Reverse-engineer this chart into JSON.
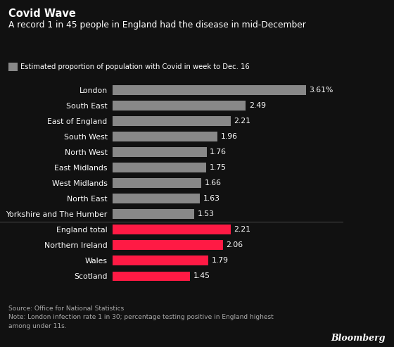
{
  "title_bold": "Covid Wave",
  "title_sub": "A record 1 in 45 people in England had the disease in mid-December",
  "legend_label": "Estimated proportion of population with Covid in week to Dec. 16",
  "categories": [
    "London",
    "South East",
    "East of England",
    "South West",
    "North West",
    "East Midlands",
    "West Midlands",
    "North East",
    "Yorkshire and The Humber",
    "England total",
    "Northern Ireland",
    "Wales",
    "Scotland"
  ],
  "values": [
    3.61,
    2.49,
    2.21,
    1.96,
    1.76,
    1.75,
    1.66,
    1.63,
    1.53,
    2.21,
    2.06,
    1.79,
    1.45
  ],
  "labels": [
    "3.61%",
    "2.49",
    "2.21",
    "1.96",
    "1.76",
    "1.75",
    "1.66",
    "1.63",
    "1.53",
    "2.21",
    "2.06",
    "1.79",
    "1.45"
  ],
  "colors": [
    "#888888",
    "#888888",
    "#888888",
    "#888888",
    "#888888",
    "#888888",
    "#888888",
    "#888888",
    "#888888",
    "#ff1a44",
    "#ff1a44",
    "#ff1a44",
    "#ff1a44"
  ],
  "background_color": "#111111",
  "text_color": "#ffffff",
  "source_text": "Source: Office for National Statistics\nNote: London infection rate 1 in 30; percentage testing positive in England highest\namong under 11s.",
  "bloomberg_text": "Bloomberg",
  "bar_height": 0.62,
  "xlim": [
    0,
    4.3
  ],
  "gray_color": "#888888",
  "red_color": "#ff1a44",
  "sep_color": "#555555",
  "source_color": "#aaaaaa"
}
